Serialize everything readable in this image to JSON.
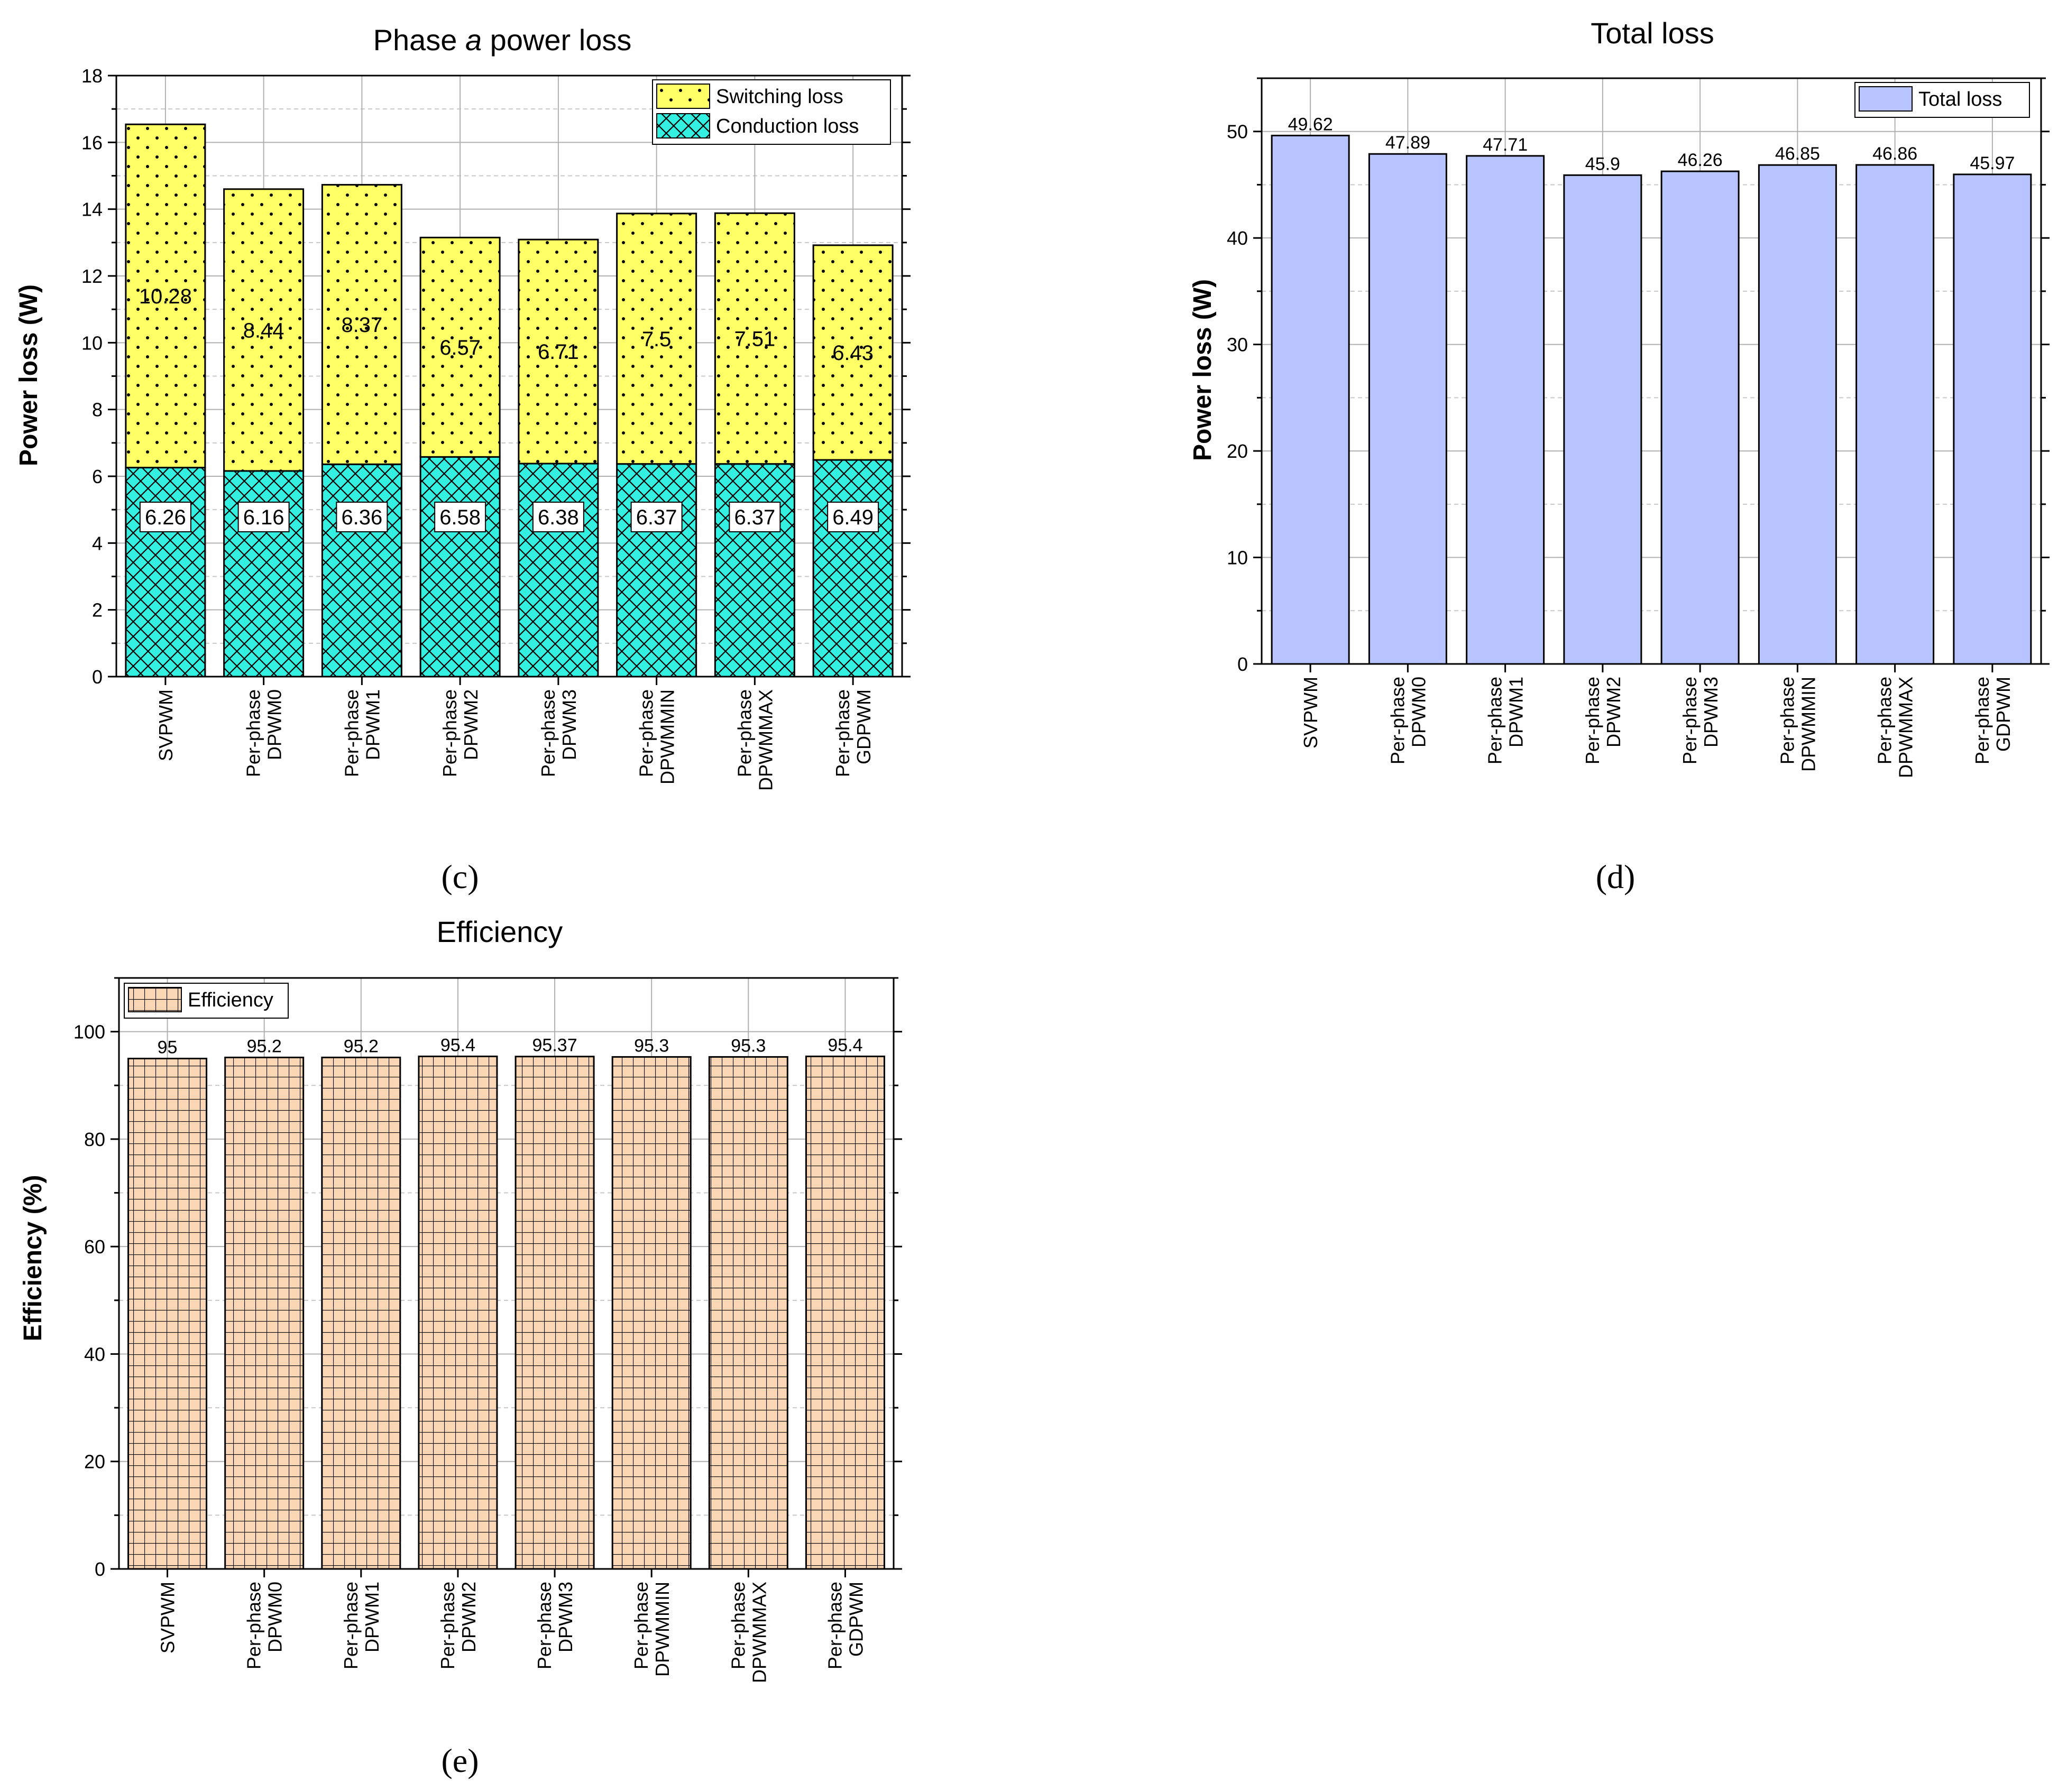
{
  "chart_data": [
    {
      "id": "c",
      "type": "bar",
      "stacked": true,
      "title": "Phase a power loss",
      "title_prefix": "Phase ",
      "title_italic": "a",
      "title_suffix": " power loss",
      "ylabel": "Power loss (W)",
      "ylim": [
        0,
        18
      ],
      "yticks": [
        0,
        2,
        4,
        6,
        8,
        10,
        12,
        14,
        16,
        18
      ],
      "categories": [
        [
          "SVPWM"
        ],
        [
          "Per-phase",
          "DPWM0"
        ],
        [
          "Per-phase",
          "DPWM1"
        ],
        [
          "Per-phase",
          "DPWM2"
        ],
        [
          "Per-phase",
          "DPWM3"
        ],
        [
          "Per-phase",
          "DPWMMIN"
        ],
        [
          "Per-phase",
          "DPWMMAX"
        ],
        [
          "Per-phase",
          "GDPWM"
        ]
      ],
      "series": [
        {
          "name": "Conduction loss",
          "values": [
            6.26,
            6.16,
            6.36,
            6.58,
            6.38,
            6.37,
            6.37,
            6.49
          ],
          "labels": [
            "6.26",
            "6.16",
            "6.36",
            "6.58",
            "6.38",
            "6.37",
            "6.37",
            "6.49"
          ],
          "color": "#33f0e0",
          "pattern": "crosshatch"
        },
        {
          "name": "Switching loss",
          "values": [
            10.28,
            8.44,
            8.37,
            6.57,
            6.71,
            7.5,
            7.51,
            6.43
          ],
          "labels": [
            "10.28",
            "8.44",
            "8.37",
            "6.57",
            "6.71",
            "7.5",
            "7.51",
            "6.43"
          ],
          "color": "#ffff66",
          "pattern": "dots"
        }
      ],
      "legend": [
        "Switching loss",
        "Conduction loss"
      ],
      "legend_position": "top-right",
      "caption": "(c)"
    },
    {
      "id": "d",
      "type": "bar",
      "title": "Total loss",
      "ylabel": "Power loss (W)",
      "ylim": [
        0,
        55
      ],
      "yticks": [
        0,
        10,
        20,
        30,
        40,
        50
      ],
      "categories": [
        [
          "SVPWM"
        ],
        [
          "Per-phase",
          "DPWM0"
        ],
        [
          "Per-phase",
          "DPWM1"
        ],
        [
          "Per-phase",
          "DPWM2"
        ],
        [
          "Per-phase",
          "DPWM3"
        ],
        [
          "Per-phase",
          "DPWMMIN"
        ],
        [
          "Per-phase",
          "DPWMMAX"
        ],
        [
          "Per-phase",
          "GDPWM"
        ]
      ],
      "series": [
        {
          "name": "Total loss",
          "values": [
            49.62,
            47.89,
            47.71,
            45.9,
            46.26,
            46.85,
            46.86,
            45.97
          ],
          "labels": [
            "49.62",
            "47.89",
            "47.71",
            "45.9",
            "46.26",
            "46.85",
            "46.86",
            "45.97"
          ],
          "color": "#b8c4ff",
          "pattern": "solid"
        }
      ],
      "legend": [
        "Total loss"
      ],
      "legend_position": "top-right",
      "caption": "(d)"
    },
    {
      "id": "e",
      "type": "bar",
      "title": "Efficiency",
      "ylabel": "Efficiency (%)",
      "ylim": [
        0,
        110
      ],
      "yticks": [
        0,
        20,
        40,
        60,
        80,
        100
      ],
      "categories": [
        [
          "SVPWM"
        ],
        [
          "Per-phase",
          "DPWM0"
        ],
        [
          "Per-phase",
          "DPWM1"
        ],
        [
          "Per-phase",
          "DPWM2"
        ],
        [
          "Per-phase",
          "DPWM3"
        ],
        [
          "Per-phase",
          "DPWMMIN"
        ],
        [
          "Per-phase",
          "DPWMMAX"
        ],
        [
          "Per-phase",
          "GDPWM"
        ]
      ],
      "series": [
        {
          "name": "Efficiency",
          "values": [
            95,
            95.2,
            95.2,
            95.4,
            95.37,
            95.3,
            95.3,
            95.4
          ],
          "labels": [
            "95",
            "95.2",
            "95.2",
            "95.4",
            "95.37",
            "95.3",
            "95.3",
            "95.4"
          ],
          "color": "#fbd6b4",
          "pattern": "grid"
        }
      ],
      "legend": [
        "Efficiency"
      ],
      "legend_position": "top-left",
      "caption": "(e)"
    }
  ]
}
